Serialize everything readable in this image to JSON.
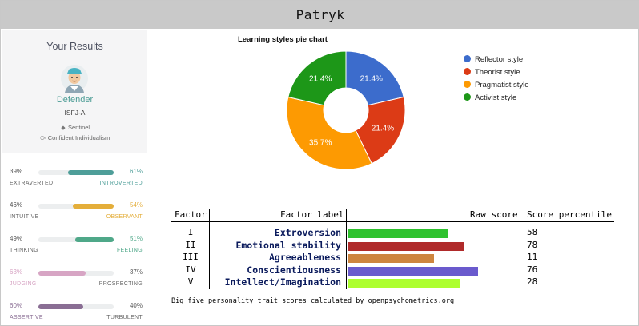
{
  "window": {
    "title": "Patryk"
  },
  "profile": {
    "heading": "Your Results",
    "type_name": "Defender",
    "type_code": "ISFJ-A",
    "role": "Sentinel",
    "strategy": "Confident Individualism",
    "role_icon": "tag-icon",
    "strategy_icon": "compass-icon",
    "accent": "#4a9b94"
  },
  "traits": [
    {
      "left_pct": "39%",
      "right_pct": "61%",
      "left_label": "EXTRAVERTED",
      "right_label": "INTROVERTED",
      "dominant": "right",
      "value": 61,
      "color": "#4e9e99"
    },
    {
      "left_pct": "46%",
      "right_pct": "54%",
      "left_label": "INTUITIVE",
      "right_label": "OBSERVANT",
      "dominant": "right",
      "value": 54,
      "color": "#e4ae3a"
    },
    {
      "left_pct": "49%",
      "right_pct": "51%",
      "left_label": "THINKING",
      "right_label": "FEELING",
      "dominant": "right",
      "value": 51,
      "color": "#4fa889"
    },
    {
      "left_pct": "63%",
      "right_pct": "37%",
      "left_label": "JUDGING",
      "right_label": "PROSPECTING",
      "dominant": "left",
      "value": 63,
      "color": "#d7a5c4"
    },
    {
      "left_pct": "60%",
      "right_pct": "40%",
      "left_label": "ASSERTIVE",
      "right_label": "TURBULENT",
      "dominant": "left",
      "value": 60,
      "color": "#8a6e94"
    }
  ],
  "chart_data": {
    "type": "pie",
    "title": "Learning styles pie chart",
    "donut": true,
    "legend_position": "right",
    "series": [
      {
        "name": "Reflector style",
        "value": 21.4,
        "label": "21.4%",
        "color": "#3c6ccc"
      },
      {
        "name": "Theorist style",
        "value": 21.4,
        "label": "21.4%",
        "color": "#dc3b16"
      },
      {
        "name": "Pragmatist style",
        "value": 35.7,
        "label": "35.7%",
        "color": "#fd9a02"
      },
      {
        "name": "Activist style",
        "value": 21.4,
        "label": "21.4%",
        "color": "#1d9718"
      }
    ]
  },
  "bigfive": {
    "headers": {
      "factor": "Factor",
      "label": "Factor label",
      "raw": "Raw score",
      "percentile": "Score percentile"
    },
    "rows": [
      {
        "num": "I",
        "label": "Extroversion",
        "raw_fraction": 0.59,
        "percentile": "58",
        "color": "#2fc22f"
      },
      {
        "num": "II",
        "label": "Emotional stability",
        "raw_fraction": 0.69,
        "percentile": "78",
        "color": "#b02a2a"
      },
      {
        "num": "III",
        "label": "Agreeableness",
        "raw_fraction": 0.51,
        "percentile": "11",
        "color": "#cd853f"
      },
      {
        "num": "IV",
        "label": "Conscientiousness",
        "raw_fraction": 0.77,
        "percentile": "76",
        "color": "#6a5acd"
      },
      {
        "num": "V",
        "label": "Intellect/Imagination",
        "raw_fraction": 0.66,
        "percentile": "28",
        "color": "#adff2f"
      }
    ],
    "note": "Big five personality trait scores calculated by openpsychometrics.org"
  }
}
